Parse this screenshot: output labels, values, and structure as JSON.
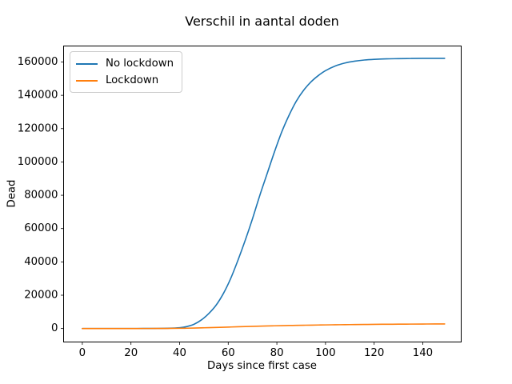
{
  "figure": {
    "background": "#ffffff",
    "text_color": "#000000",
    "spine_color": "#000000"
  },
  "chart_data": {
    "type": "line",
    "title": "Verschil in aantal doden",
    "xlabel": "Days since first case",
    "ylabel": "Dead",
    "grid": false,
    "legend_position": "upper-left",
    "xlim": [
      -7.7,
      155.8
    ],
    "ylim": [
      -8090,
      169600
    ],
    "xticks": [
      0,
      20,
      40,
      60,
      80,
      100,
      120,
      140
    ],
    "yticks": [
      0,
      20000,
      40000,
      60000,
      80000,
      100000,
      120000,
      140000,
      160000
    ],
    "x": [
      0,
      5,
      10,
      15,
      20,
      25,
      30,
      35,
      40,
      43,
      46,
      49,
      52,
      55,
      58,
      61,
      64,
      67,
      70,
      73,
      76,
      79,
      82,
      85,
      88,
      91,
      94,
      97,
      100,
      104,
      108,
      112,
      116,
      120,
      125,
      130,
      135,
      140,
      145,
      149
    ],
    "series": [
      {
        "name": "No lockdown",
        "color": "#1f77b4",
        "values": [
          0,
          0,
          1,
          3,
          8,
          20,
          60,
          170,
          500,
          1200,
          2600,
          5200,
          9000,
          14000,
          21000,
          30000,
          41000,
          53000,
          66000,
          80000,
          93000,
          106000,
          118000,
          128000,
          136500,
          143000,
          148000,
          151800,
          154800,
          157600,
          159400,
          160500,
          161200,
          161600,
          161900,
          162000,
          162100,
          162200,
          162200,
          162200
        ]
      },
      {
        "name": "Lockdown",
        "color": "#ff7f0e",
        "values": [
          0,
          0,
          1,
          3,
          6,
          12,
          25,
          60,
          130,
          200,
          290,
          400,
          520,
          650,
          780,
          920,
          1060,
          1190,
          1310,
          1430,
          1540,
          1640,
          1730,
          1820,
          1900,
          1980,
          2050,
          2120,
          2180,
          2260,
          2330,
          2390,
          2450,
          2500,
          2560,
          2610,
          2660,
          2700,
          2730,
          2750
        ]
      }
    ]
  }
}
